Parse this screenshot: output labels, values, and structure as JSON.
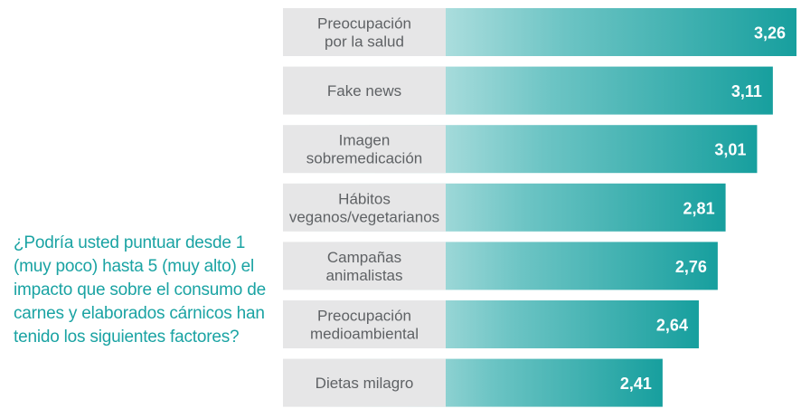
{
  "question": "¿Podría usted puntuar desde 1 (muy poco) hasta 5 (muy alto) el impacto que sobre el consumo de carnes y elaborados cárnicos han tenido los siguientes factores?",
  "colors": {
    "bar_start": "#ffffff",
    "bar_end": "#179f9e",
    "label_box": "#e6e6e7",
    "label_text": "#5f6265",
    "question_text": "#1aa3a3"
  },
  "chart_data": {
    "type": "bar",
    "orientation": "horizontal",
    "categories": [
      [
        "Preocupación",
        "por la salud"
      ],
      [
        "Fake news"
      ],
      [
        "Imagen",
        "sobremedicación"
      ],
      [
        "Hábitos",
        "veganos/vegetarianos"
      ],
      [
        "Campañas",
        "animalistas"
      ],
      [
        "Preocupación",
        "medioambiental"
      ],
      [
        "Dietas milagro"
      ]
    ],
    "values": [
      3.26,
      3.11,
      3.01,
      2.81,
      2.76,
      2.64,
      2.41
    ],
    "value_labels": [
      "3,26",
      "3,11",
      "3,01",
      "2,81",
      "2,76",
      "2,64",
      "2,41"
    ],
    "grid": false,
    "legend": "none"
  }
}
